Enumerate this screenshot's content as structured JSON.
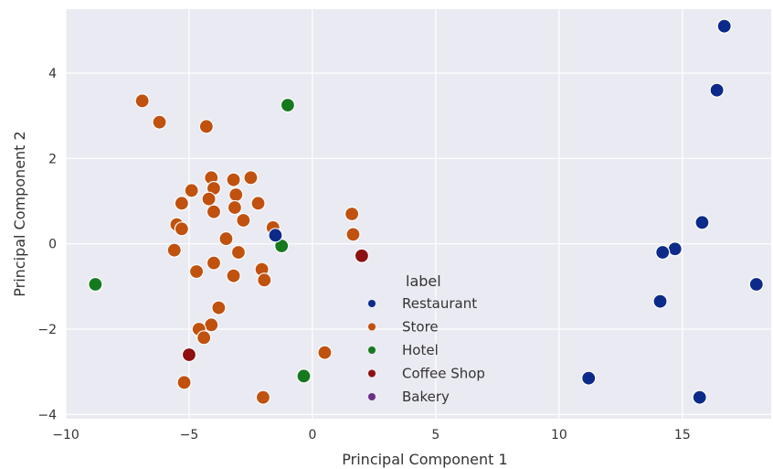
{
  "chart_data": {
    "type": "scatter",
    "xlabel": "Principal Component 1",
    "ylabel": "Principal Component 2",
    "xlim": [
      -10,
      18.6
    ],
    "ylim": [
      -4.1,
      5.5
    ],
    "xticks": [
      -10,
      -5,
      0,
      5,
      10,
      15
    ],
    "yticks": [
      -4,
      -2,
      0,
      2,
      4
    ],
    "xtick_labels": [
      "−10",
      "−5",
      "0",
      "5",
      "10",
      "15"
    ],
    "ytick_labels": [
      "−4",
      "−2",
      "0",
      "2",
      "4"
    ],
    "grid": true,
    "legend": {
      "title": "label",
      "placement": "lower-center"
    },
    "series": [
      {
        "name": "Restaurant",
        "color": "#0c2a8a",
        "points": [
          [
            16.7,
            5.1
          ],
          [
            16.4,
            3.6
          ],
          [
            15.8,
            0.5
          ],
          [
            18.0,
            -0.95
          ],
          [
            14.7,
            -0.12
          ],
          [
            14.2,
            -0.2
          ],
          [
            14.1,
            -1.35
          ],
          [
            11.2,
            -3.15
          ],
          [
            15.7,
            -3.6
          ],
          [
            -1.5,
            0.2
          ]
        ]
      },
      {
        "name": "Store",
        "color": "#c0510f",
        "points": [
          [
            -6.9,
            3.35
          ],
          [
            -6.2,
            2.85
          ],
          [
            -4.3,
            2.75
          ],
          [
            -4.1,
            1.55
          ],
          [
            -4.0,
            1.3
          ],
          [
            -4.2,
            1.05
          ],
          [
            -4.0,
            0.75
          ],
          [
            -3.2,
            1.5
          ],
          [
            -3.1,
            1.15
          ],
          [
            -3.15,
            0.85
          ],
          [
            -2.5,
            1.55
          ],
          [
            -2.2,
            0.95
          ],
          [
            -2.8,
            0.55
          ],
          [
            -4.9,
            1.25
          ],
          [
            -5.3,
            0.95
          ],
          [
            -5.5,
            0.45
          ],
          [
            -5.3,
            0.35
          ],
          [
            -5.6,
            -0.15
          ],
          [
            -3.5,
            0.12
          ],
          [
            -3.0,
            -0.2
          ],
          [
            -1.6,
            0.38
          ],
          [
            -4.0,
            -0.45
          ],
          [
            -4.7,
            -0.65
          ],
          [
            -3.2,
            -0.75
          ],
          [
            -2.05,
            -0.6
          ],
          [
            -1.95,
            -0.85
          ],
          [
            -3.8,
            -1.5
          ],
          [
            -4.1,
            -1.9
          ],
          [
            -4.6,
            -2.0
          ],
          [
            -4.4,
            -2.2
          ],
          [
            -5.2,
            -3.25
          ],
          [
            -2.0,
            -3.6
          ],
          [
            0.5,
            -2.55
          ],
          [
            1.6,
            0.7
          ],
          [
            1.65,
            0.22
          ]
        ]
      },
      {
        "name": "Hotel",
        "color": "#157a1d",
        "points": [
          [
            -1.0,
            3.25
          ],
          [
            -1.25,
            -0.05
          ],
          [
            -8.8,
            -0.95
          ],
          [
            -0.35,
            -3.1
          ]
        ]
      },
      {
        "name": "Coffee Shop",
        "color": "#8e1010",
        "points": [
          [
            2.0,
            -0.28
          ],
          [
            -5.0,
            -2.6
          ]
        ]
      },
      {
        "name": "Bakery",
        "color": "#6b2f8a",
        "points": []
      }
    ]
  }
}
